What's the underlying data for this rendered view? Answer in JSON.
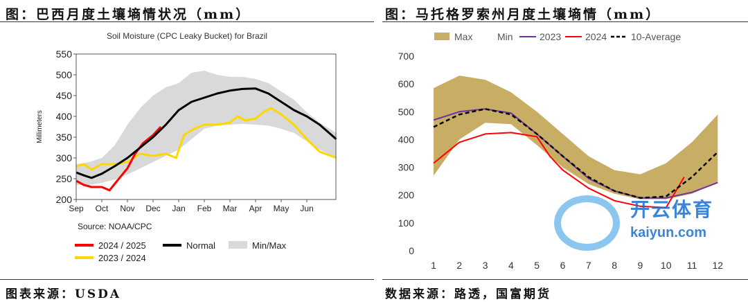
{
  "left_panel": {
    "caption": "图：巴西月度土壤墒情状况（mm）",
    "source": "图表来源：USDA"
  },
  "right_panel": {
    "caption": "图：马托格罗索州月度土壤墒情（mm）",
    "source": "数据来源：路透，国富期货"
  },
  "watermark": {
    "brand": "开云体育",
    "url": "kaiyun.com"
  },
  "chart_data": [
    {
      "type": "line",
      "title": "Soil Moisture (CPC Leaky Bucket) for Brazil",
      "ylabel": "Millimeters",
      "note": "Source: NOAA/CPC",
      "ylim": [
        200,
        550
      ],
      "yticks": [
        200,
        250,
        300,
        350,
        400,
        450,
        500,
        550
      ],
      "xticks": [
        "Sep",
        "Oct",
        "Nov",
        "Dec",
        "Jan",
        "Feb",
        "Mar",
        "Apr",
        "May",
        "Jun"
      ],
      "xlim": [
        0,
        10.15
      ],
      "band": {
        "name": "Min/Max",
        "color": "#d9d9d9",
        "x": [
          0,
          0.5,
          1,
          1.5,
          2,
          2.5,
          3,
          3.5,
          4,
          4.5,
          5,
          5.5,
          6,
          6.5,
          7,
          7.5,
          8,
          8.5,
          9,
          9.5,
          10.15
        ],
        "upper": [
          285,
          290,
          300,
          330,
          380,
          420,
          450,
          470,
          480,
          505,
          510,
          500,
          495,
          495,
          490,
          480,
          460,
          440,
          410,
          385,
          360
        ],
        "lower": [
          235,
          235,
          240,
          248,
          260,
          275,
          290,
          305,
          320,
          345,
          370,
          378,
          380,
          382,
          380,
          378,
          370,
          360,
          340,
          320,
          300
        ]
      },
      "series": [
        {
          "name": "Normal",
          "color": "#000000",
          "x": [
            0,
            0.3,
            0.6,
            1,
            1.5,
            2,
            2.5,
            3,
            3.5,
            4,
            4.5,
            5,
            5.5,
            6,
            6.5,
            7,
            7.5,
            8,
            8.5,
            9,
            9.5,
            10.15
          ],
          "y": [
            265,
            258,
            252,
            262,
            280,
            300,
            325,
            350,
            380,
            415,
            435,
            445,
            455,
            462,
            466,
            467,
            455,
            435,
            415,
            400,
            380,
            345
          ]
        },
        {
          "name": "2024 / 2025",
          "color": "#ff0000",
          "x": [
            0,
            0.3,
            0.6,
            1,
            1.3,
            1.6,
            2,
            2.3,
            2.6,
            3,
            3.3
          ],
          "y": [
            245,
            235,
            230,
            230,
            222,
            245,
            275,
            310,
            335,
            355,
            375
          ]
        },
        {
          "name": "2023 / 2024",
          "color": "#ffd700",
          "x": [
            0,
            0.3,
            0.6,
            1,
            1.5,
            2,
            2.5,
            3,
            3.5,
            3.9,
            4.2,
            4.6,
            5,
            5.5,
            6,
            6.3,
            6.6,
            7,
            7.3,
            7.6,
            8,
            8.5,
            9,
            9.5,
            10.15
          ],
          "y": [
            280,
            285,
            272,
            285,
            285,
            290,
            310,
            305,
            310,
            300,
            355,
            370,
            380,
            380,
            385,
            400,
            390,
            395,
            410,
            420,
            405,
            380,
            345,
            315,
            300
          ]
        }
      ],
      "legend": [
        "2024 / 2025",
        "Normal",
        "Min/Max",
        "2023 / 2024"
      ]
    },
    {
      "type": "area",
      "legend": [
        "Max",
        "Min",
        "2023",
        "2024",
        "10-Average"
      ],
      "ylim": [
        0,
        700
      ],
      "yticks": [
        0,
        100,
        200,
        300,
        400,
        500,
        600,
        700
      ],
      "x": [
        1,
        2,
        3,
        4,
        5,
        6,
        7,
        8,
        9,
        10,
        11,
        12
      ],
      "band": {
        "name": "Max/Min",
        "color": "#c8ae64",
        "max": [
          585,
          630,
          615,
          570,
          500,
          420,
          340,
          290,
          275,
          315,
          390,
          490
        ],
        "min": [
          270,
          400,
          460,
          455,
          380,
          300,
          240,
          205,
          185,
          185,
          205,
          245
        ]
      },
      "series": [
        {
          "name": "2023",
          "color": "#7030a0",
          "x": [
            1,
            2,
            3,
            4,
            5,
            6,
            7,
            8,
            9,
            10,
            11,
            12
          ],
          "y": [
            470,
            500,
            510,
            495,
            420,
            340,
            260,
            215,
            190,
            190,
            210,
            245
          ],
          "dash": false
        },
        {
          "name": "2024",
          "color": "#ff0000",
          "x": [
            1,
            2,
            3,
            4,
            5,
            5.5,
            6,
            7,
            8,
            9,
            10,
            10.7
          ],
          "y": [
            315,
            390,
            420,
            425,
            410,
            340,
            290,
            225,
            180,
            160,
            155,
            265
          ],
          "dash": false
        },
        {
          "name": "10-Average",
          "color": "#000000",
          "x": [
            1,
            2,
            3,
            4,
            5,
            6,
            7,
            8,
            9,
            10,
            11,
            12
          ],
          "y": [
            445,
            490,
            510,
            490,
            420,
            340,
            265,
            215,
            190,
            195,
            265,
            355
          ],
          "dash": true
        }
      ]
    }
  ]
}
